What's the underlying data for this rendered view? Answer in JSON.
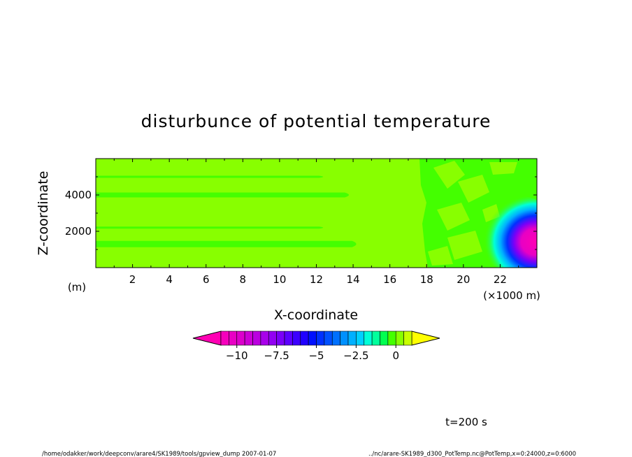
{
  "chart_data": {
    "type": "heatmap",
    "title": "disturbunce of potential temperature",
    "xlabel": "X-coordinate",
    "x_unit": "(×1000 m)",
    "ylabel": "Z-coordinate",
    "y_unit": "(m)",
    "xlim": [
      0,
      24000
    ],
    "ylim": [
      0,
      6000
    ],
    "x_ticks": [
      2,
      4,
      6,
      8,
      10,
      12,
      14,
      16,
      18,
      20,
      22
    ],
    "y_ticks": [
      2000,
      4000
    ],
    "colorbar": {
      "ticks": [
        -10,
        -7.5,
        -5,
        -2.5,
        0
      ],
      "tick_labels": [
        "−10",
        "−7.5",
        "−5",
        "−2.5",
        "0"
      ],
      "levels": [
        -11,
        -10.5,
        -10,
        -9.5,
        -9,
        -8.5,
        -8,
        -7.5,
        -7,
        -6.5,
        -6,
        -5.5,
        -5,
        -4.5,
        -4,
        -3.5,
        -3,
        -2.5,
        -2,
        -1.5,
        -1,
        -0.5,
        0,
        0.5,
        1
      ],
      "colors": [
        "#ff00b4",
        "#f500bc",
        "#e800c4",
        "#dc00cc",
        "#cc00d6",
        "#bb00e0",
        "#a800ea",
        "#9200f2",
        "#7a00f8",
        "#5c00ff",
        "#3c00ff",
        "#2000ff",
        "#0010ff",
        "#0030ff",
        "#0050ff",
        "#0070ff",
        "#0090ff",
        "#00b0ff",
        "#00d0ff",
        "#00ffd8",
        "#00ff9c",
        "#00ff50",
        "#44ff00",
        "#88ff00",
        "#c8ff00",
        "#ffff00"
      ],
      "extend": "both"
    },
    "features": {
      "background_value": 0.3,
      "negative_anomaly": {
        "x_center": 23800,
        "z_center": 1100,
        "min_value": -10.5
      },
      "stripes_near_zero_at_z": [
        4000,
        1300,
        5000,
        2200
      ]
    }
  },
  "footer": {
    "time": "t=200 s",
    "path": "/home/odakker/work/deepconv/arare4/SK1989/tools/gpview_dump  2007-01-07",
    "file": "../nc/arare-SK1989_d300_PotTemp.nc@PotTemp,x=0:24000,z=0:6000"
  }
}
